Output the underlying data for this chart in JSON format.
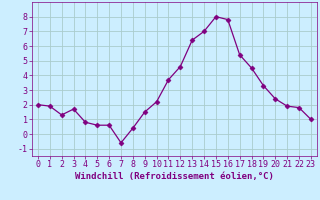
{
  "x": [
    0,
    1,
    2,
    3,
    4,
    5,
    6,
    7,
    8,
    9,
    10,
    11,
    12,
    13,
    14,
    15,
    16,
    17,
    18,
    19,
    20,
    21,
    22,
    23
  ],
  "y": [
    2.0,
    1.9,
    1.3,
    1.7,
    0.8,
    0.6,
    0.6,
    -0.6,
    0.4,
    1.5,
    2.2,
    3.7,
    4.6,
    6.4,
    7.0,
    8.0,
    7.8,
    5.4,
    4.5,
    3.3,
    2.4,
    1.9,
    1.8,
    1.0
  ],
  "line_color": "#800080",
  "marker": "D",
  "marker_size": 2.5,
  "bg_color": "#cceeff",
  "grid_color": "#aacccc",
  "xlabel": "Windchill (Refroidissement éolien,°C)",
  "tick_color": "#800080",
  "xlim": [
    -0.5,
    23.5
  ],
  "ylim": [
    -1.5,
    9.0
  ],
  "yticks": [
    -1,
    0,
    1,
    2,
    3,
    4,
    5,
    6,
    7,
    8
  ],
  "xticks": [
    0,
    1,
    2,
    3,
    4,
    5,
    6,
    7,
    8,
    9,
    10,
    11,
    12,
    13,
    14,
    15,
    16,
    17,
    18,
    19,
    20,
    21,
    22,
    23
  ],
  "tick_fontsize": 6,
  "xlabel_fontsize": 6.5
}
